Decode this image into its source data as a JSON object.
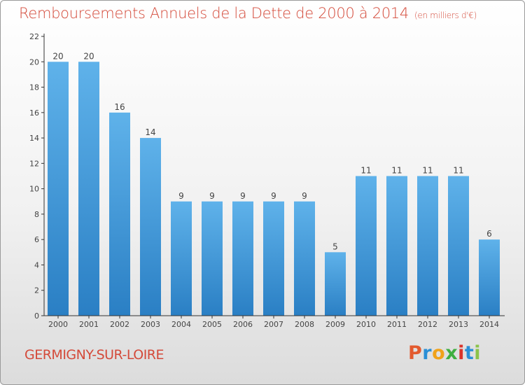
{
  "title": "Remboursements Annuels de la Dette de 2000 à 2014",
  "subtitle": "(en milliers d'€)",
  "commune": "GERMIGNY-SUR-LOIRE",
  "logo": {
    "text": "Proxiti",
    "letters": [
      "P",
      "r",
      "o",
      "x",
      "i",
      "t",
      "i"
    ],
    "colors": [
      "#e35a2e",
      "#2a8fd6",
      "#f0a21a",
      "#3fae3f",
      "#d9342b",
      "#2a8fd6",
      "#8bc34a"
    ]
  },
  "colors": {
    "title": "#d44a3a",
    "bar_top": "#5fb2ea",
    "bar_bottom": "#2a7fc4",
    "axis": "#333333"
  },
  "chart_data": {
    "type": "bar",
    "title": "Remboursements Annuels de la Dette de 2000 à 2014",
    "ylabel": "",
    "xlabel": "",
    "ylim": [
      0,
      22
    ],
    "yticks": [
      0,
      2,
      4,
      6,
      8,
      10,
      12,
      14,
      16,
      18,
      20,
      22
    ],
    "categories": [
      "2000",
      "2001",
      "2002",
      "2003",
      "2004",
      "2005",
      "2006",
      "2007",
      "2008",
      "2009",
      "2010",
      "2011",
      "2012",
      "2013",
      "2014"
    ],
    "values": [
      20,
      20,
      16,
      14,
      9,
      9,
      9,
      9,
      9,
      5,
      11,
      11,
      11,
      11,
      6
    ]
  }
}
